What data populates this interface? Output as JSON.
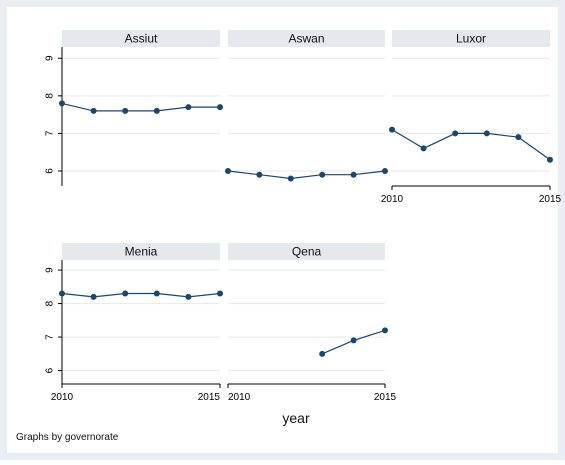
{
  "note_text": "Graphs by governorate",
  "colors": {
    "outer_bg": "#E8EEF3",
    "panel_bg": "#FFFFFF",
    "strip_bg": "#E4E9EE",
    "grid": "#E3E8EC",
    "line": "#1A476F",
    "axis": "#000000"
  },
  "chart_data": {
    "type": "line",
    "facet_by": "governorate",
    "xlabel": "year",
    "ylabel": "",
    "xlim": [
      2010,
      2015
    ],
    "ylim": [
      5.6,
      9.3
    ],
    "x_ticks": [
      2010,
      2015
    ],
    "y_ticks": [
      6,
      7,
      8,
      9
    ],
    "grid": true,
    "series": [
      {
        "name": "Assiut",
        "x": [
          2010,
          2011,
          2012,
          2013,
          2014,
          2015
        ],
        "values": [
          7.8,
          7.6,
          7.6,
          7.6,
          7.7,
          7.7
        ]
      },
      {
        "name": "Aswan",
        "x": [
          2010,
          2011,
          2012,
          2013,
          2014,
          2015
        ],
        "values": [
          6.0,
          5.9,
          5.8,
          5.9,
          5.9,
          6.0
        ]
      },
      {
        "name": "Luxor",
        "x": [
          2010,
          2011,
          2012,
          2013,
          2014,
          2015
        ],
        "values": [
          7.1,
          6.6,
          7.0,
          7.0,
          6.9,
          6.3
        ]
      },
      {
        "name": "Menia",
        "x": [
          2010,
          2011,
          2012,
          2013,
          2014,
          2015
        ],
        "values": [
          8.3,
          8.2,
          8.3,
          8.3,
          8.2,
          8.3
        ]
      },
      {
        "name": "Qena",
        "x": [
          2013,
          2014,
          2015
        ],
        "values": [
          6.5,
          6.9,
          7.2
        ]
      }
    ]
  }
}
